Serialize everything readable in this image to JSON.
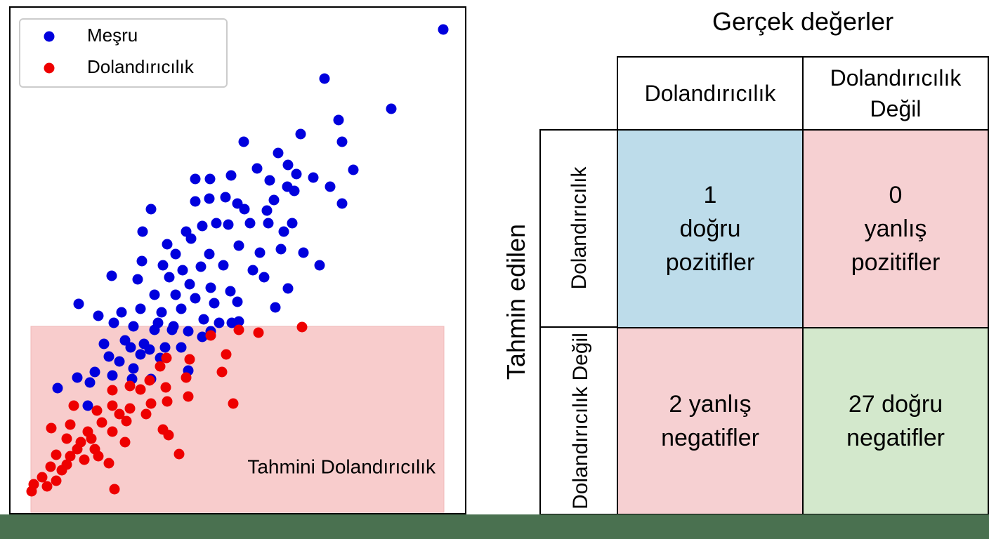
{
  "chart_data": {
    "type": "scatter",
    "series": [
      {
        "name": "Meşru",
        "color": "#0000dd",
        "x": [
          617,
          448,
          543,
          468,
          473,
          414,
          333,
          489,
          382,
          396,
          352,
          315,
          408,
          432,
          456,
          370,
          285,
          264,
          395,
          473,
          405,
          307,
          284,
          264,
          334,
          376,
          324,
          201,
          366,
          294,
          342,
          311,
          274,
          251,
          402,
          390,
          368,
          189,
          224,
          258,
          236,
          284,
          326,
          356,
          386,
          418,
          441,
          188,
          218,
          246,
          272,
          304,
          346,
          362,
          145,
          182,
          227,
          256,
          286,
          314,
          396,
          206,
          236,
          264,
          291,
          324,
          378,
          98,
          126,
          159,
          186,
          216,
          244,
          276,
          298,
          326,
          148,
          176,
          206,
          231,
          254,
          286,
          134,
          164,
          191,
          221,
          244,
          274,
          186,
          214,
          156,
          176,
          121,
          146,
          114,
          174,
          201,
          254,
          68,
          96,
          141,
          111,
          233,
          211,
          316,
          172,
          199
        ],
        "y": [
          690,
          620,
          577,
          561,
          530,
          541,
          530,
          490,
          514,
          497,
          492,
          482,
          484,
          479,
          466,
          475,
          477,
          477,
          466,
          442,
          460,
          451,
          449,
          445,
          434,
          447,
          442,
          434,
          432,
          414,
          414,
          412,
          410,
          402,
          414,
          402,
          414,
          402,
          384,
          392,
          370,
          370,
          382,
          372,
          377,
          372,
          354,
          360,
          354,
          347,
          352,
          354,
          347,
          337,
          339,
          334,
          337,
          327,
          322,
          317,
          321,
          312,
          312,
          307,
          300,
          302,
          294,
          299,
          282,
          287,
          292,
          287,
          292,
          277,
          272,
          274,
          272,
          267,
          262,
          262,
          260,
          260,
          242,
          247,
          242,
          237,
          237,
          252,
          227,
          222,
          217,
          207,
          202,
          197,
          187,
          192,
          192,
          204,
          179,
          194,
          224,
          154,
          267,
          272,
          272,
          237,
          234
        ]
      },
      {
        "name": "Dolandırıcılık",
        "color": "#ee0000",
        "x": [
          416,
          354,
          326,
          286,
          308,
          302,
          223,
          214,
          256,
          251,
          222,
          199,
          146,
          171,
          186,
          318,
          254,
          224,
          201,
          171,
          146,
          91,
          124,
          156,
          194,
          218,
          226,
          166,
          131,
          86,
          59,
          111,
          146,
          164,
          81,
          101,
          121,
          66,
          86,
          106,
          141,
          58,
          74,
          46,
          66,
          34,
          31,
          53,
          149,
          241,
          116,
          96,
          126,
          81
        ],
        "y": [
          266,
          258,
          262,
          254,
          227,
          202,
          222,
          210,
          220,
          194,
          180,
          190,
          176,
          182,
          177,
          157,
          167,
          160,
          157,
          150,
          154,
          154,
          147,
          142,
          142,
          120,
          112,
          132,
          130,
          127,
          122,
          117,
          117,
          102,
          107,
          102,
          92,
          84,
          82,
          77,
          72,
          67,
          62,
          52,
          47,
          42,
          32,
          39,
          35,
          85,
          107,
          92,
          82,
          70
        ]
      }
    ],
    "xlim": [
      0,
      649
    ],
    "ylim": [
      0,
      722
    ],
    "legend": "upper left",
    "annotation": "Tahmini Dolandırıcılık"
  },
  "confusion_matrix": {
    "title": "Gerçek değerler",
    "row_axis_label": "Tahmin edilen",
    "columns": [
      "Dolandırıcılık",
      "Dolandırıcılık Değil"
    ],
    "rows": [
      "Dolandırıcılık",
      "Dolandırıcılık Değil"
    ],
    "cells": [
      {
        "count": 1,
        "label": "doğru pozitifler"
      },
      {
        "count": 0,
        "label": "yanlış pozitifler"
      },
      {
        "count": 2,
        "label": "yanlış negatifler"
      },
      {
        "count": 27,
        "label": "doğru negatifler"
      }
    ]
  }
}
